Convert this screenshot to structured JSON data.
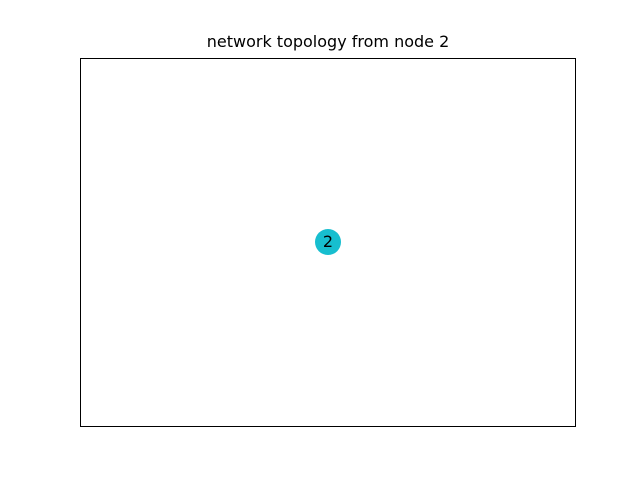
{
  "figure": {
    "title": "network topology from node 2"
  },
  "graph": {
    "node_color": "#17becf",
    "nodes": [
      {
        "label": "2"
      }
    ],
    "edges": []
  }
}
